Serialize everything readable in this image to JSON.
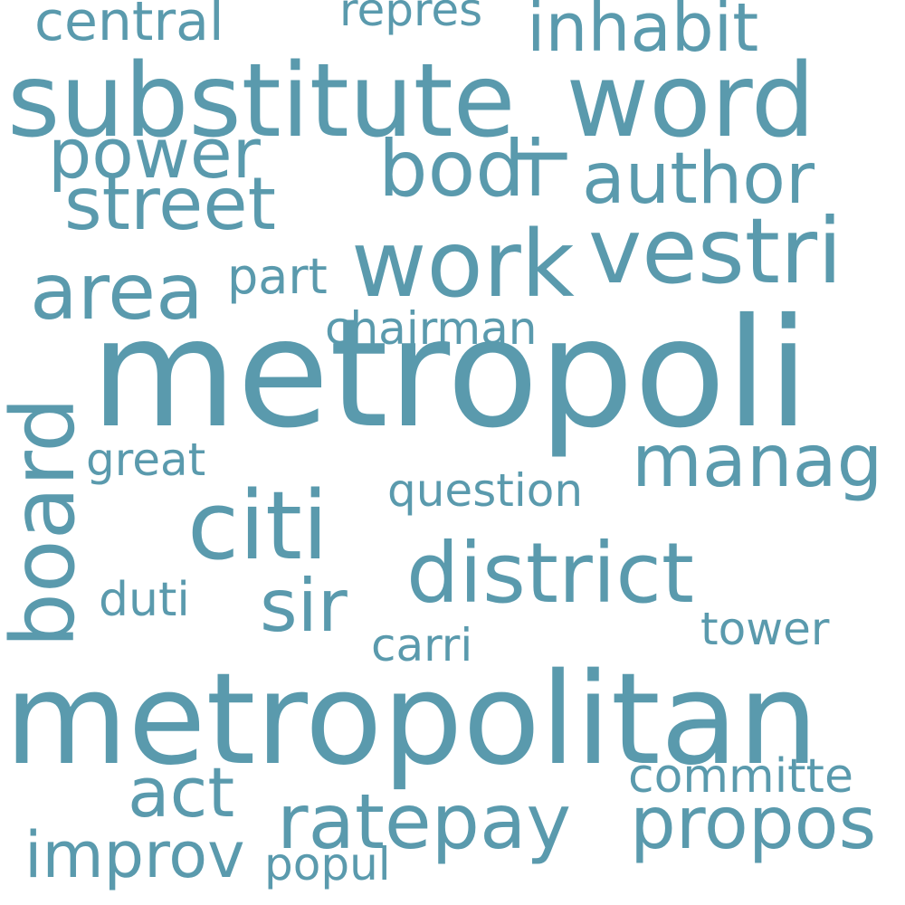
{
  "text_color": "#5a9aad",
  "background": "#ffffff",
  "words": {
    "metropoli": "metropoli",
    "metropolitan": "metropolitan",
    "substitute_word": "substitute_word",
    "board": "board",
    "work": "work",
    "vestri": "vestri",
    "citi": "citi",
    "district": "district",
    "ratepay": "ratepay",
    "propos": "propos",
    "bodi": "bodi",
    "author": "author",
    "power": "power",
    "street": "street",
    "area": "area",
    "inhabit": "inhabit",
    "central": "central",
    "repres": "repres",
    "manag": "manag",
    "act": "act",
    "improv": "improv",
    "sir": "sir",
    "question": "question",
    "chairman": "chairman",
    "part": "part",
    "great": "great",
    "duti": "duti",
    "tower": "tower",
    "carri": "carri",
    "committe": "committe",
    "popul": "popul"
  }
}
